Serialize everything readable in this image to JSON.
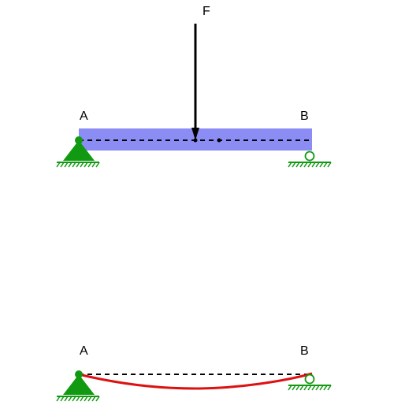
{
  "labels": {
    "force": "F",
    "support_left": "A",
    "support_right": "B",
    "deflected_support_left": "A",
    "deflected_support_right": "B"
  },
  "colors": {
    "beam_fill": "#8c8cf5",
    "support": "#119911",
    "deflection_curve": "#dd1111",
    "axis_line": "#000000",
    "force_arrow": "#000000"
  },
  "icons": {
    "pin_support": "pin-support-triangle",
    "roller_support": "roller-support-circle",
    "ground": "ground-hatch"
  }
}
